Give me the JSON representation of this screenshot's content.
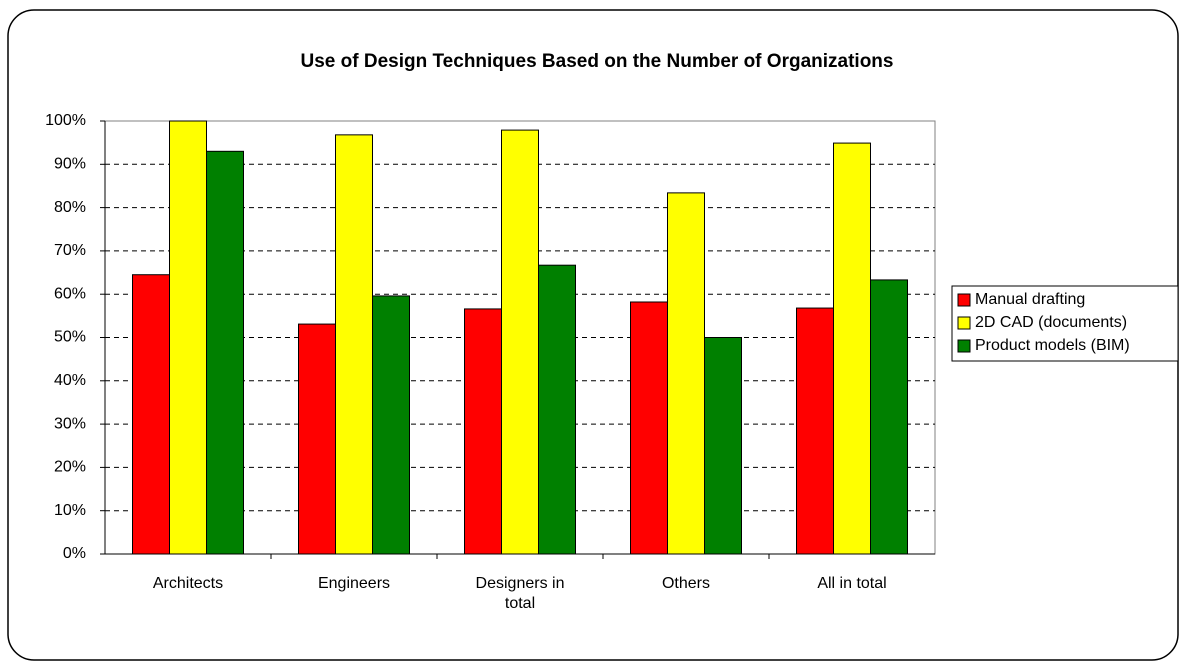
{
  "chart_data": {
    "type": "bar",
    "title": "Use of Design Techniques Based on the Number of Organizations",
    "categories": [
      "Architects",
      "Engineers",
      "Designers in total",
      "Others",
      "All in total"
    ],
    "series": [
      {
        "name": "Manual drafting",
        "color": "#ff0000",
        "values": [
          64.5,
          53.1,
          56.6,
          58.2,
          56.8
        ]
      },
      {
        "name": "2D CAD (documents)",
        "color": "#ffff00",
        "values": [
          100,
          96.8,
          97.9,
          83.4,
          94.9
        ]
      },
      {
        "name": "Product models (BIM)",
        "color": "#008000",
        "values": [
          93,
          59.6,
          66.7,
          50,
          63.3
        ]
      }
    ],
    "ylim": [
      0,
      100
    ],
    "yticks": [
      {
        "value": 0,
        "label": "0%"
      },
      {
        "value": 10,
        "label": "10%"
      },
      {
        "value": 20,
        "label": "20%"
      },
      {
        "value": 30,
        "label": "30%"
      },
      {
        "value": 40,
        "label": "40%"
      },
      {
        "value": 50,
        "label": "50%"
      },
      {
        "value": 60,
        "label": "60%"
      },
      {
        "value": 70,
        "label": "70%"
      },
      {
        "value": 80,
        "label": "80%"
      },
      {
        "value": 90,
        "label": "90%"
      },
      {
        "value": 100,
        "label": "100%"
      }
    ],
    "grid": true,
    "legend": "right"
  }
}
